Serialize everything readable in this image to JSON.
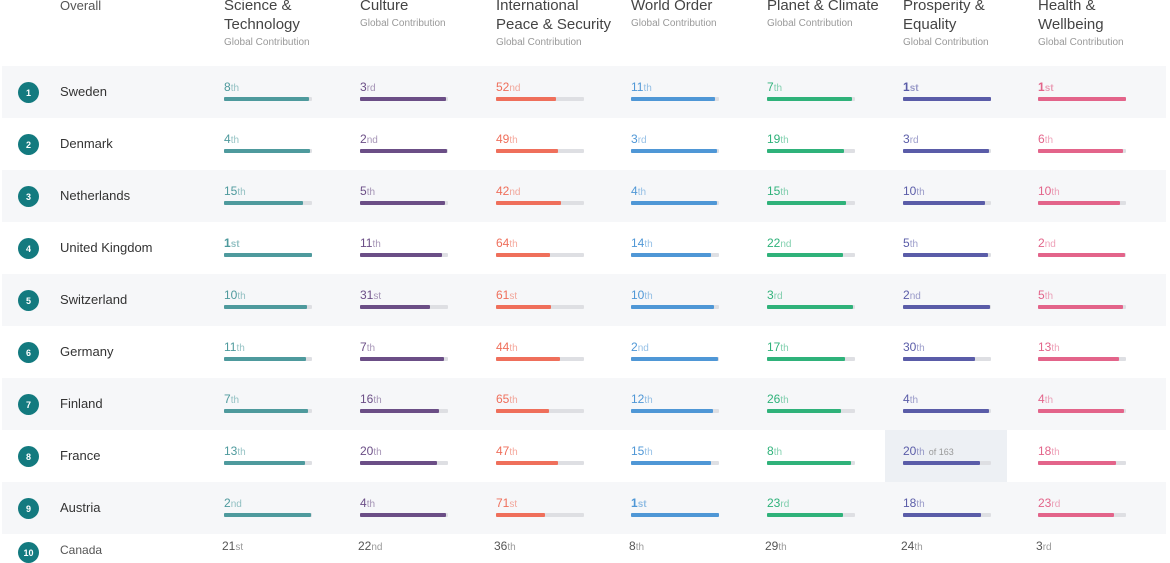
{
  "header": {
    "overall_label": "Overall",
    "categories": [
      {
        "key": "sci",
        "title_lines": [
          "Science &",
          "Technology"
        ],
        "subtitle": "Global Contribution",
        "color": "#4e9a9d"
      },
      {
        "key": "cul",
        "title_lines": [
          "Culture"
        ],
        "subtitle": "Global Contribution",
        "color": "#6b4e86"
      },
      {
        "key": "ips",
        "title_lines": [
          "International",
          "Peace & Security"
        ],
        "subtitle": "Global Contribution",
        "color": "#ef6f5b"
      },
      {
        "key": "wo",
        "title_lines": [
          "World Order"
        ],
        "subtitle": "Global Contribution",
        "color": "#4f97d6"
      },
      {
        "key": "pc",
        "title_lines": [
          "Planet & Climate"
        ],
        "subtitle": "Global Contribution",
        "color": "#2fb27a"
      },
      {
        "key": "pe",
        "title_lines": [
          "Prosperity &",
          "Equality"
        ],
        "subtitle": "Global Contribution",
        "color": "#5a5ca8"
      },
      {
        "key": "hw",
        "title_lines": [
          "Health &",
          "Wellbeing"
        ],
        "subtitle": "Global Contribution",
        "color": "#e3648a"
      }
    ]
  },
  "rows": [
    {
      "rank": "1",
      "country": "Sweden",
      "cells": [
        [
          "8",
          "th",
          0.97
        ],
        [
          "3",
          "rd",
          0.98
        ],
        [
          "52",
          "nd",
          0.68
        ],
        [
          "11",
          "th",
          0.96
        ],
        [
          "7",
          "th",
          0.97
        ],
        [
          "1",
          "st",
          1.0
        ],
        [
          "1",
          "st",
          1.0
        ]
      ]
    },
    {
      "rank": "2",
      "country": "Denmark",
      "cells": [
        [
          "4",
          "th",
          0.98
        ],
        [
          "2",
          "nd",
          0.99
        ],
        [
          "49",
          "th",
          0.7
        ],
        [
          "3",
          "rd",
          0.98
        ],
        [
          "19",
          "th",
          0.88
        ],
        [
          "3",
          "rd",
          0.98
        ],
        [
          "6",
          "th",
          0.97
        ]
      ]
    },
    {
      "rank": "3",
      "country": "Netherlands",
      "cells": [
        [
          "15",
          "th",
          0.9
        ],
        [
          "5",
          "th",
          0.97
        ],
        [
          "42",
          "nd",
          0.74
        ],
        [
          "4",
          "th",
          0.98
        ],
        [
          "15",
          "th",
          0.9
        ],
        [
          "10",
          "th",
          0.93
        ],
        [
          "10",
          "th",
          0.93
        ]
      ]
    },
    {
      "rank": "4",
      "country": "United Kingdom",
      "cells": [
        [
          "1",
          "st",
          1.0
        ],
        [
          "11",
          "th",
          0.93
        ],
        [
          "64",
          "th",
          0.61
        ],
        [
          "14",
          "th",
          0.91
        ],
        [
          "22",
          "nd",
          0.86
        ],
        [
          "5",
          "th",
          0.97
        ],
        [
          "2",
          "nd",
          0.99
        ]
      ]
    },
    {
      "rank": "5",
      "country": "Switzerland",
      "cells": [
        [
          "10",
          "th",
          0.94
        ],
        [
          "31",
          "st",
          0.8
        ],
        [
          "61",
          "st",
          0.63
        ],
        [
          "10",
          "th",
          0.94
        ],
        [
          "3",
          "rd",
          0.98
        ],
        [
          "2",
          "nd",
          0.99
        ],
        [
          "5",
          "th",
          0.97
        ]
      ]
    },
    {
      "rank": "6",
      "country": "Germany",
      "cells": [
        [
          "11",
          "th",
          0.93
        ],
        [
          "7",
          "th",
          0.96
        ],
        [
          "44",
          "th",
          0.73
        ],
        [
          "2",
          "nd",
          0.99
        ],
        [
          "17",
          "th",
          0.89
        ],
        [
          "30",
          "th",
          0.82
        ],
        [
          "13",
          "th",
          0.92
        ]
      ]
    },
    {
      "rank": "7",
      "country": "Finland",
      "cells": [
        [
          "7",
          "th",
          0.96
        ],
        [
          "16",
          "th",
          0.9
        ],
        [
          "65",
          "th",
          0.6
        ],
        [
          "12",
          "th",
          0.93
        ],
        [
          "26",
          "th",
          0.84
        ],
        [
          "4",
          "th",
          0.98
        ],
        [
          "4",
          "th",
          0.98
        ]
      ]
    },
    {
      "rank": "8",
      "country": "France",
      "cells": [
        [
          "13",
          "th",
          0.92
        ],
        [
          "20",
          "th",
          0.88
        ],
        [
          "47",
          "th",
          0.71
        ],
        [
          "15",
          "th",
          0.91
        ],
        [
          "8",
          "th",
          0.95
        ],
        [
          "20",
          "th",
          0.88
        ],
        [
          "18",
          "th",
          0.89
        ]
      ],
      "hover": {
        "col": 5,
        "of_text": "of 163"
      }
    },
    {
      "rank": "9",
      "country": "Austria",
      "cells": [
        [
          "2",
          "nd",
          0.99
        ],
        [
          "4",
          "th",
          0.98
        ],
        [
          "71",
          "st",
          0.56
        ],
        [
          "1",
          "st",
          1.0
        ],
        [
          "23",
          "rd",
          0.86
        ],
        [
          "18",
          "th",
          0.89
        ],
        [
          "23",
          "rd",
          0.86
        ]
      ]
    }
  ],
  "partial_row": {
    "rank": "10",
    "country": "Canada",
    "cells": [
      [
        "21",
        "st"
      ],
      [
        "22",
        "nd"
      ],
      [
        "36",
        "th"
      ],
      [
        "8",
        "th"
      ],
      [
        "29",
        "th"
      ],
      [
        "24",
        "th"
      ],
      [
        "3",
        "rd"
      ]
    ]
  }
}
